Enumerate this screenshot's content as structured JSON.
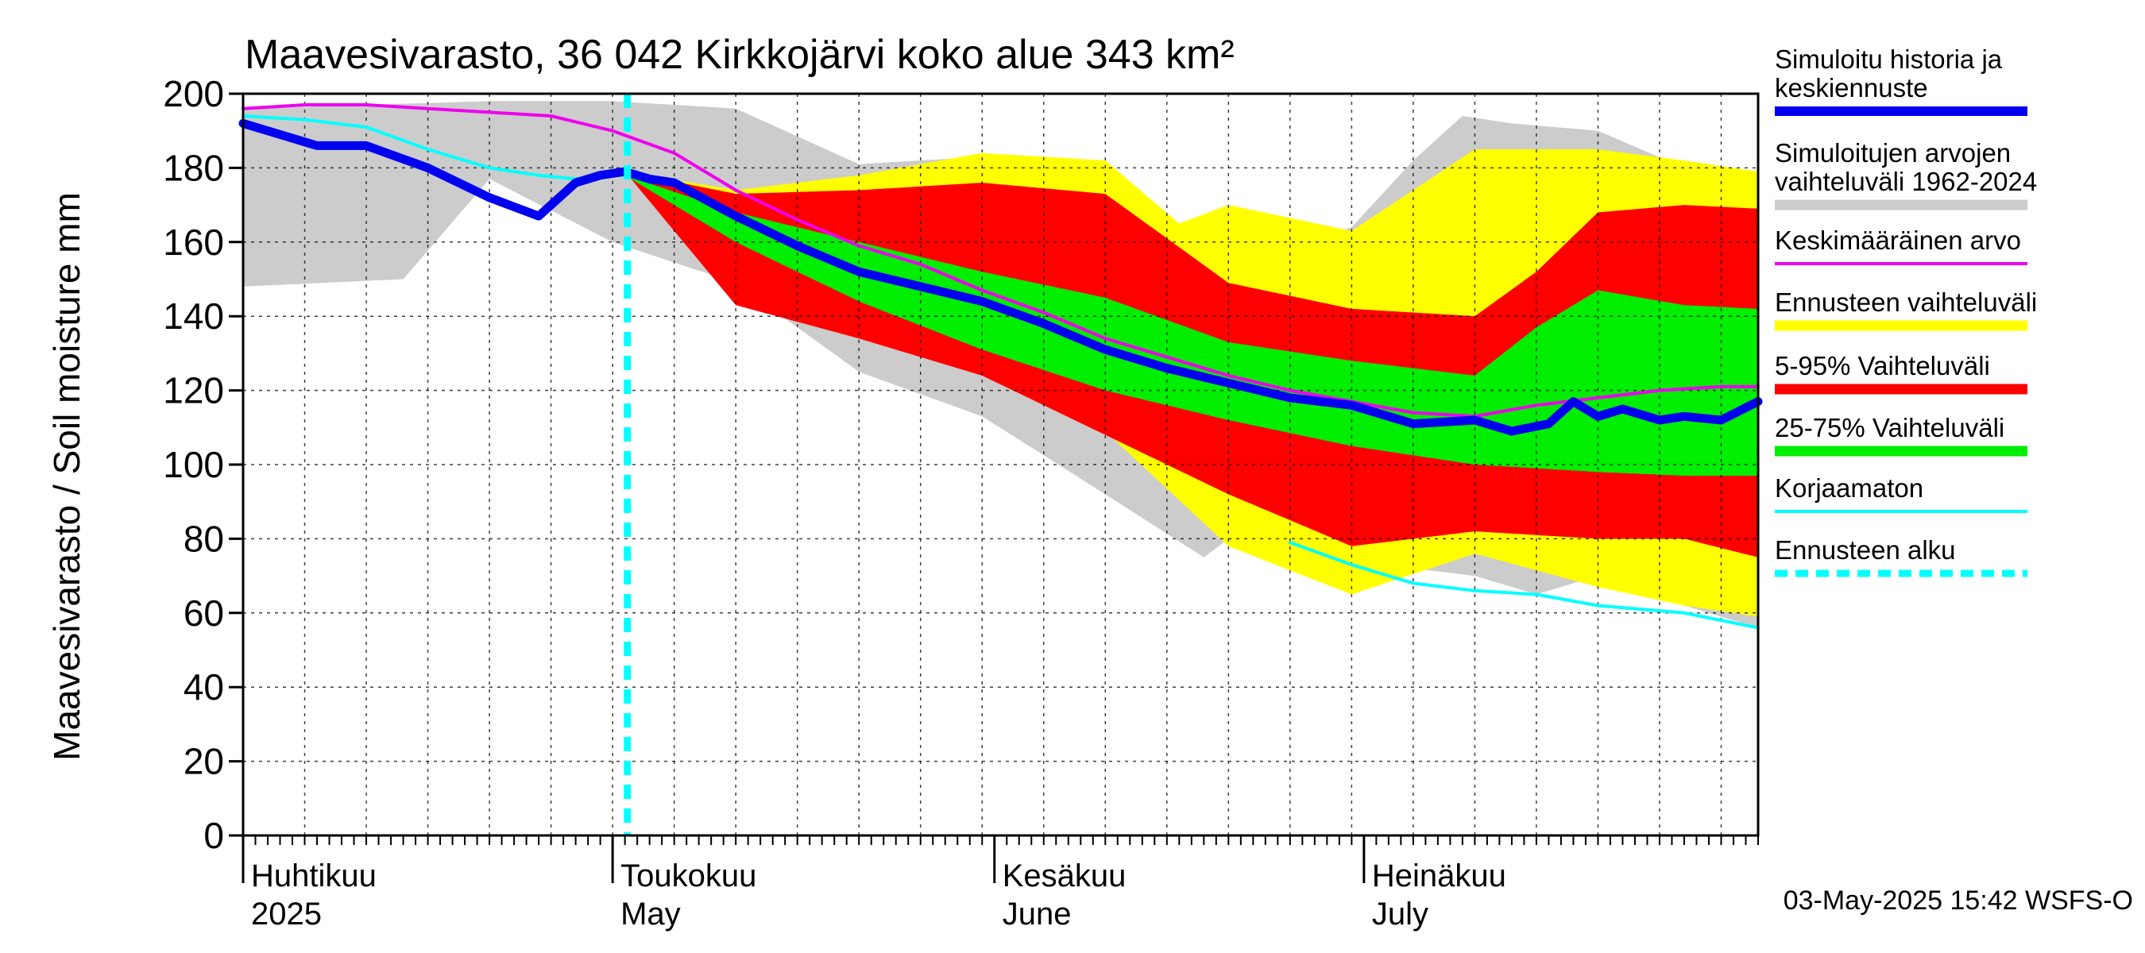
{
  "chart_data": {
    "type": "area",
    "title": "Maavesivarasto, 36 042 Kirkkojärvi koko alue 343 km²",
    "ylabel": "Maavesivarasto / Soil moisture   mm",
    "ylim": [
      0,
      200
    ],
    "yticks": [
      0,
      20,
      40,
      60,
      80,
      100,
      120,
      140,
      160,
      180,
      200
    ],
    "x_unit": "day since 2025-04-01",
    "xlim": [
      0,
      123
    ],
    "month_labels": [
      {
        "top": "Huhtikuu",
        "bottom": "2025",
        "day": 0
      },
      {
        "top": "Toukokuu",
        "bottom": "May",
        "day": 30
      },
      {
        "top": "Kesäkuu",
        "bottom": "June",
        "day": 61
      },
      {
        "top": "Heinäkuu",
        "bottom": "July",
        "day": 91
      }
    ],
    "forecast_start_day": 31.2,
    "grid": true,
    "legend_position": "right",
    "legend": [
      {
        "label": "Simuloitu historia ja keskiennuste",
        "color": "#0000ee",
        "style": "thick"
      },
      {
        "label": "Simuloitujen arvojen vaihteluväli 1962-2024",
        "color": "#cccccc",
        "style": "band"
      },
      {
        "label": "Keskimääräinen arvo",
        "color": "#ee00ee",
        "style": "line"
      },
      {
        "label": "Ennusteen vaihteluväli",
        "color": "#ffff00",
        "style": "band"
      },
      {
        "label": "5-95% Vaihteluväli",
        "color": "#ff0000",
        "style": "band"
      },
      {
        "label": "25-75% Vaihteluväli",
        "color": "#00ee00",
        "style": "band"
      },
      {
        "label": "Korjaamaton",
        "color": "#00ffff",
        "style": "line"
      },
      {
        "label": "Ennusteen alku",
        "color": "#00ffff",
        "style": "dashed"
      }
    ],
    "series": [
      {
        "name": "Simuloitujen arvojen vaihteluväli 1962-2024 (max)",
        "x": [
          0,
          10,
          20,
          30,
          40,
          50,
          60,
          65,
          70,
          75,
          80,
          85,
          90,
          95,
          99,
          103,
          110,
          117,
          123
        ],
        "values": [
          196,
          197,
          198,
          198,
          196,
          181,
          183,
          175,
          169,
          162,
          158,
          159,
          164,
          182,
          194,
          192,
          190,
          180,
          179
        ]
      },
      {
        "name": "Simuloitujen arvojen vaihteluväli 1962-2024 (min)",
        "x": [
          0,
          13,
          20,
          30,
          40,
          50,
          60,
          70,
          78,
          84,
          90,
          95,
          100,
          105,
          110,
          117,
          123
        ],
        "values": [
          148,
          150,
          177,
          160,
          149,
          125,
          113,
          92,
          75,
          90,
          79,
          72,
          70,
          65,
          70,
          62,
          56
        ]
      },
      {
        "name": "Ennusteen vaihteluväli (max)",
        "x": [
          31,
          40,
          50,
          60,
          70,
          76,
          80,
          90,
          100,
          110,
          117,
          123
        ],
        "values": [
          179,
          174,
          178,
          184,
          182,
          165,
          170,
          163,
          185,
          185,
          182,
          179
        ]
      },
      {
        "name": "Ennusteen vaihteluväli (min)",
        "x": [
          31,
          40,
          50,
          60,
          70,
          80,
          90,
          100,
          110,
          117,
          123
        ],
        "values": [
          179,
          144,
          135,
          125,
          109,
          78,
          65,
          76,
          67,
          62,
          59
        ]
      },
      {
        "name": "5-95% Vaihteluväli (max)",
        "x": [
          31,
          40,
          50,
          60,
          70,
          80,
          90,
          100,
          105,
          110,
          117,
          123
        ],
        "values": [
          179,
          173,
          174,
          176,
          173,
          149,
          142,
          140,
          152,
          168,
          170,
          169
        ]
      },
      {
        "name": "5-95% Vaihteluväli (min)",
        "x": [
          31,
          40,
          50,
          60,
          70,
          80,
          90,
          100,
          110,
          117,
          123
        ],
        "values": [
          179,
          143,
          134,
          124,
          108,
          92,
          78,
          82,
          80,
          80,
          75
        ]
      },
      {
        "name": "25-75% Vaihteluväli (max)",
        "x": [
          31,
          40,
          50,
          60,
          70,
          80,
          90,
          100,
          105,
          110,
          117,
          123
        ],
        "values": [
          178,
          168,
          160,
          152,
          145,
          133,
          128,
          124,
          137,
          147,
          143,
          142
        ]
      },
      {
        "name": "25-75% Vaihteluväli (min)",
        "x": [
          31,
          40,
          50,
          60,
          70,
          80,
          90,
          100,
          110,
          117,
          123
        ],
        "values": [
          178,
          160,
          144,
          131,
          120,
          112,
          105,
          100,
          98,
          97,
          97
        ]
      },
      {
        "name": "Simuloitu historia ja keskiennuste",
        "x": [
          0,
          3,
          6,
          10,
          15,
          20,
          24,
          27,
          29,
          31,
          33,
          35,
          40,
          45,
          50,
          55,
          60,
          65,
          70,
          75,
          80,
          85,
          90,
          95,
          100,
          103,
          106,
          108,
          110,
          112,
          115,
          117,
          120,
          123
        ],
        "values": [
          192,
          189,
          186,
          186,
          180,
          172,
          167,
          176,
          178,
          179,
          177,
          176,
          167,
          159,
          152,
          148,
          144,
          138,
          131,
          126,
          122,
          118,
          116,
          111,
          112,
          109,
          111,
          117,
          113,
          115,
          112,
          113,
          112,
          117
        ]
      },
      {
        "name": "Keskimääräinen arvo",
        "x": [
          0,
          5,
          10,
          15,
          20,
          25,
          30,
          35,
          40,
          45,
          50,
          55,
          60,
          65,
          70,
          75,
          80,
          85,
          90,
          95,
          100,
          105,
          110,
          115,
          120,
          123
        ],
        "values": [
          196,
          197,
          197,
          196,
          195,
          194,
          190,
          184,
          174,
          166,
          159,
          154,
          147,
          141,
          134,
          129,
          124,
          120,
          117,
          114,
          113,
          116,
          118,
          120,
          121,
          121
        ]
      },
      {
        "name": "Korjaamaton",
        "x": [
          0,
          5,
          10,
          15,
          20,
          24,
          27,
          29,
          31
        ],
        "values": [
          194,
          193,
          191,
          185,
          180,
          178,
          177,
          178,
          178
        ]
      },
      {
        "name": "Korjaamaton (forecast)",
        "x": [
          85,
          90,
          95,
          100,
          105,
          110,
          117,
          123
        ],
        "values": [
          79,
          73,
          68,
          66,
          65,
          62,
          60,
          56
        ]
      }
    ]
  },
  "footer": {
    "timestamp": "03-May-2025 15:42 WSFS-O"
  }
}
